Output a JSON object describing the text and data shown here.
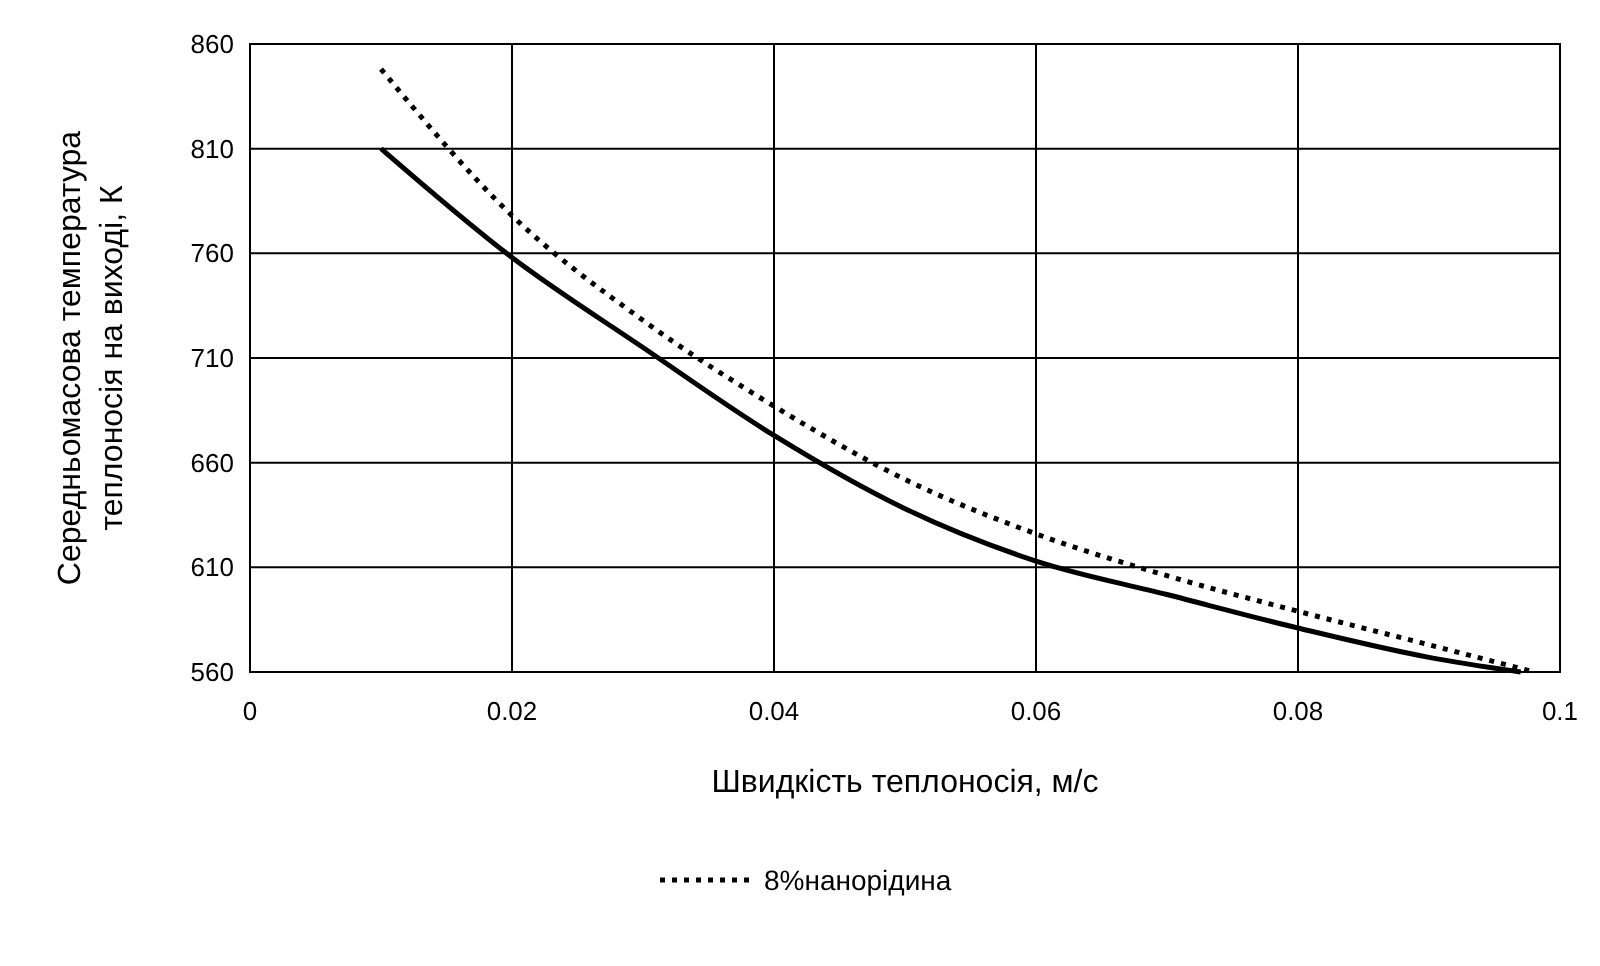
{
  "chart_data": {
    "type": "line",
    "xlabel": "Швидкість теплоносія, м/с",
    "ylabel": "Середньомасова температура теплоносія на виході, К",
    "xlim": [
      0,
      0.1
    ],
    "xticks": [
      {
        "value": 0,
        "label": "0"
      },
      0.02,
      0.04,
      0.06,
      0.08,
      0.1
    ],
    "ylim": [
      560,
      860
    ],
    "yticks": [
      560,
      610,
      660,
      710,
      760,
      810,
      860
    ],
    "grid": true,
    "legend": "bottom",
    "series": [
      {
        "color": "#000000",
        "line_style": "solid",
        "x": [
          0.01,
          0.02,
          0.03,
          0.04,
          0.05,
          0.06,
          0.07,
          0.08,
          0.09,
          0.097
        ],
        "values": [
          810,
          758,
          715,
          673,
          638,
          613,
          597,
          581,
          567,
          560
        ]
      },
      {
        "name": "8%нанорідина",
        "color": "#000000",
        "line_style": "dotted",
        "x": [
          0.01,
          0.02,
          0.03,
          0.04,
          0.05,
          0.06,
          0.07,
          0.08,
          0.09,
          0.098
        ],
        "values": [
          848,
          778,
          728,
          687,
          652,
          626,
          606,
          589,
          573,
          560
        ]
      }
    ]
  }
}
